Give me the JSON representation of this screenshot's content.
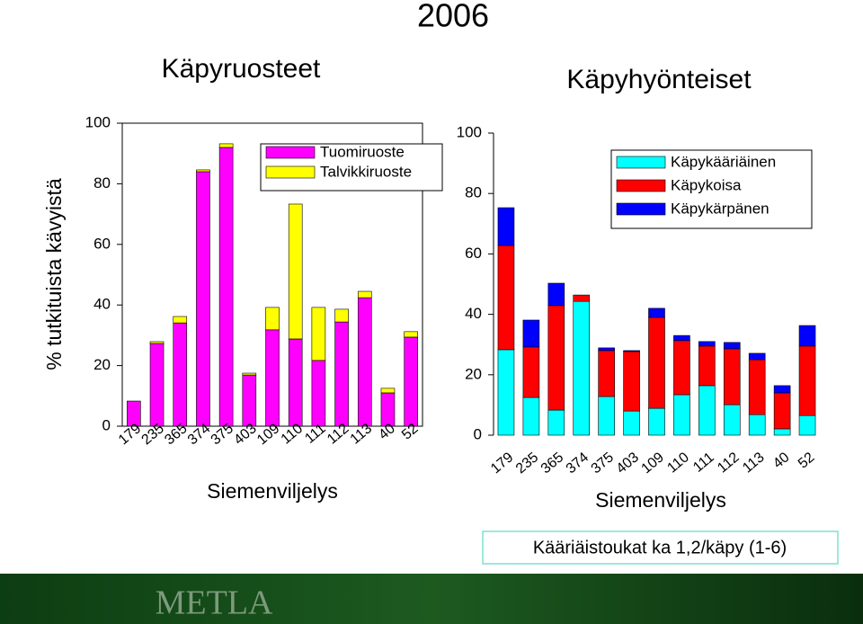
{
  "slide_title": "2006",
  "note": "Kääriäistoukat ka 1,2/käpy (1-6)",
  "logo": "METLA",
  "chart_data": [
    {
      "type": "bar",
      "stacked": true,
      "title": "Käpyruosteet",
      "xlabel": "Siemenviljelys",
      "ylabel": "% tutkituista kävyistä",
      "categories": [
        "179",
        "235",
        "365",
        "374",
        "375",
        "403",
        "109",
        "110",
        "111",
        "112",
        "113",
        "40",
        "52"
      ],
      "series": [
        {
          "name": "Tuomiruoste",
          "color": "#ff00ff",
          "values": [
            8.3,
            27.3,
            34.1,
            84,
            92,
            16.9,
            31.8,
            28.8,
            21.7,
            34.4,
            42.4,
            11,
            29.4
          ]
        },
        {
          "name": "Talvikkiruoste",
          "color": "#ffff00",
          "values": [
            0,
            0.6,
            2.1,
            0.6,
            1.2,
            0.6,
            7.4,
            44.5,
            17.5,
            4.2,
            2.1,
            1.5,
            1.8
          ]
        }
      ],
      "ylim": [
        0,
        100
      ],
      "yticks": [
        0,
        20,
        40,
        60,
        80,
        100
      ],
      "legend": "upper right"
    },
    {
      "type": "bar",
      "stacked": true,
      "title": "Käpyhyönteiset",
      "xlabel": "Siemenviljelys",
      "categories": [
        "179",
        "235",
        "365",
        "374",
        "375",
        "403",
        "109",
        "110",
        "111",
        "112",
        "113",
        "40",
        "52"
      ],
      "series": [
        {
          "name": "Käpykääriäinen",
          "color": "#00ffff",
          "values": [
            28.3,
            12.5,
            8.3,
            44.3,
            12.8,
            8,
            8.9,
            13.4,
            16.4,
            10.1,
            6.8,
            2.1,
            6.5
          ]
        },
        {
          "name": "Käpykoisa",
          "color": "#ff0000",
          "values": [
            34.5,
            16.7,
            34.6,
            2.1,
            15.2,
            19.7,
            30.1,
            17.9,
            13.1,
            18.5,
            18.2,
            11.9,
            23
          ]
        },
        {
          "name": "Käpykärpänen",
          "color": "#0000ff",
          "values": [
            12.5,
            8.9,
            7.4,
            0,
            0.9,
            0.3,
            3,
            1.7,
            1.5,
            2.1,
            2.1,
            2.4,
            6.8
          ]
        }
      ],
      "ylim": [
        0,
        100
      ],
      "yticks": [
        0,
        20,
        40,
        60,
        80,
        100
      ],
      "legend": "upper right"
    }
  ]
}
